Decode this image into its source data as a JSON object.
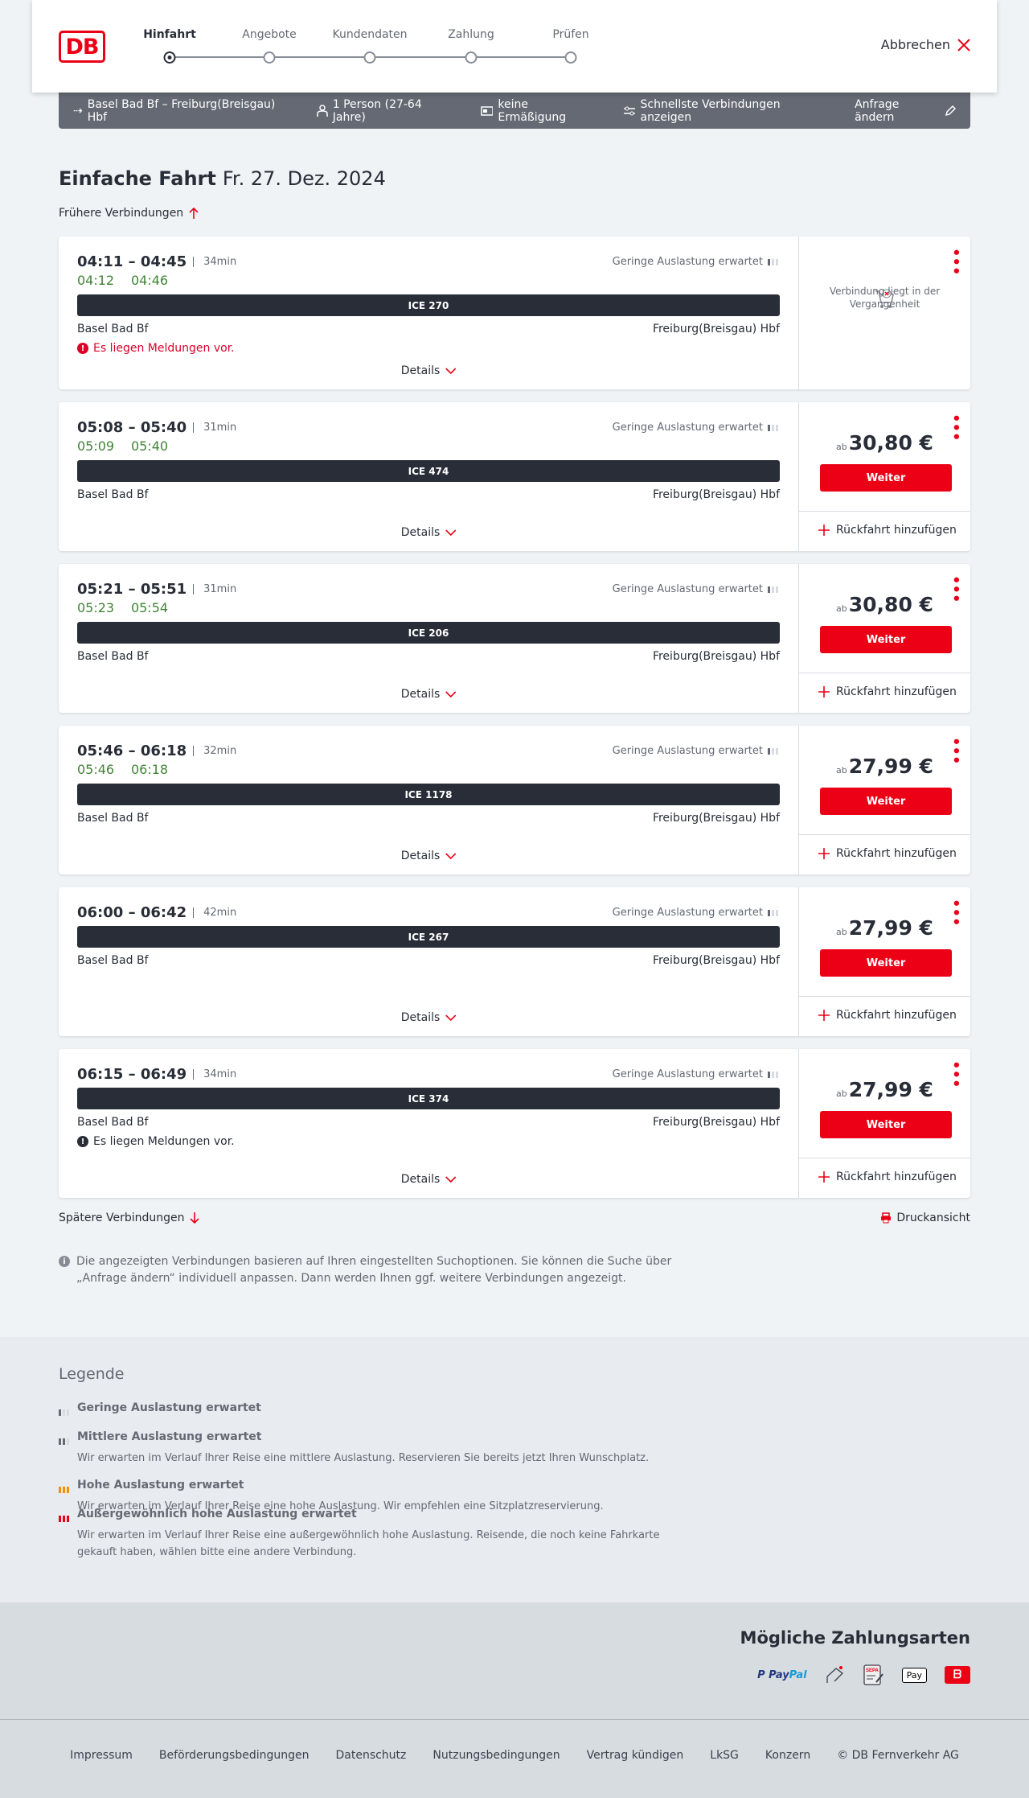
{
  "header": {
    "logo": "DB",
    "steps": [
      {
        "label": "Hinfahrt",
        "active": true
      },
      {
        "label": "Angebote"
      },
      {
        "label": "Kundendaten"
      },
      {
        "label": "Zahlung"
      },
      {
        "label": "Prüfen"
      }
    ],
    "cancel": "Abbrechen"
  },
  "query": {
    "route": "Basel Bad Bf – Freiburg(Breisgau) Hbf",
    "passengers": "1 Person (27-64 Jahre)",
    "discount": "keine Ermäßigung",
    "fastest": "Schnellste Verbindungen anzeigen",
    "change": "Anfrage ändern"
  },
  "page": {
    "title": "Einfache Fahrt",
    "date": "Fr. 27. Dez. 2024",
    "earlier": "Frühere Verbindungen",
    "later": "Spätere Verbindungen",
    "print": "Druckansicht",
    "info": "Die angezeigten Verbindungen basieren auf Ihren eingestellten Suchoptionen. Sie können die Suche über „Anfrage ändern“ individuell anpassen. Dann werden Ihnen ggf. weitere Verbindungen angezeigt."
  },
  "labels": {
    "details": "Details",
    "weiter": "Weiter",
    "return": "Rückfahrt hinzufügen",
    "ab": "ab",
    "from": "Basel Bad Bf",
    "to": "Freiburg(Breisgau) Hbf",
    "occupancy": "Geringe Auslastung erwartet",
    "past": "Verbindung liegt in der Vergangenheit"
  },
  "connections": [
    {
      "times": "04:11 – 04:45",
      "duration": "34min",
      "rt_dep": "04:12",
      "rt_arr": "04:46",
      "train": "ICE 270",
      "message": "Es liegen Meldungen vor.",
      "message_color": "#db0029",
      "past": true
    },
    {
      "times": "05:08 – 05:40",
      "duration": "31min",
      "rt_dep": "05:09",
      "rt_arr": "05:40",
      "train": "ICE 474",
      "price": "30,80 €"
    },
    {
      "times": "05:21 – 05:51",
      "duration": "31min",
      "rt_dep": "05:23",
      "rt_arr": "05:54",
      "train": "ICE 206",
      "price": "30,80 €"
    },
    {
      "times": "05:46 – 06:18",
      "duration": "32min",
      "rt_dep": "05:46",
      "rt_arr": "06:18",
      "train": "ICE 1178",
      "price": "27,99 €"
    },
    {
      "times": "06:00 – 06:42",
      "duration": "42min",
      "train": "ICE 267",
      "price": "27,99 €"
    },
    {
      "times": "06:15 – 06:49",
      "duration": "34min",
      "train": "ICE 374",
      "message": "Es liegen Meldungen vor.",
      "message_color": "#282d37",
      "price": "27,99 €"
    }
  ],
  "legend": {
    "title": "Legende",
    "items": [
      {
        "title": "Geringe Auslastung erwartet",
        "level": 1
      },
      {
        "title": "Mittlere Auslastung erwartet",
        "desc": "Wir erwarten im Verlauf Ihrer Reise eine mittlere Auslastung. Reservieren Sie bereits jetzt Ihren Wunschplatz.",
        "level": 2
      },
      {
        "title": "Hohe Auslastung erwartet",
        "desc": "Wir erwarten im Verlauf Ihrer Reise eine hohe Auslastung. Wir empfehlen eine Sitzplatzreservierung.",
        "level": 3
      },
      {
        "title": "Außergewöhnlich hohe Auslastung erwartet",
        "desc": "Wir erwarten im Verlauf Ihrer Reise eine außergewöhnlich hohe Auslastung. Reisende, die noch keine Fahrkarte gekauft haben, wählen bitte eine andere Verbindung.",
        "level": 4
      }
    ]
  },
  "payment": {
    "title": "Mögliche Zahlungsarten",
    "methods": [
      "PayPal",
      "Kreditkarte",
      "SEPA",
      "Apple Pay",
      "DB Bonus"
    ]
  },
  "footer": [
    "Impressum",
    "Beförderungsbedingungen",
    "Datenschutz",
    "Nutzungsbedingungen",
    "Vertrag kündigen",
    "LkSG",
    "Konzern",
    "© DB Fernverkehr AG"
  ],
  "colors": {
    "brand": "#ec0016",
    "realtime": "#408335",
    "querybar": "#646973",
    "text": "#282d37"
  }
}
